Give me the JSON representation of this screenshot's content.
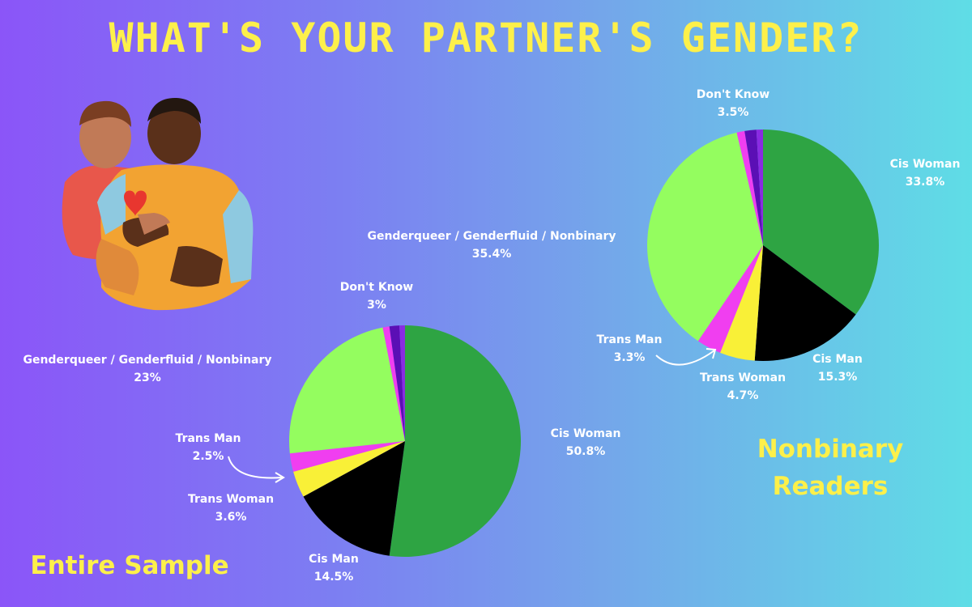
{
  "title": "WHAT'S YOUR PARTNER'S GENDER?",
  "colors": {
    "cis_woman": "#2ea443",
    "cis_man": "#000000",
    "trans_woman": "#f9f037",
    "trans_man": "#f03ef0",
    "genderqueer": "#94fd5f",
    "dont_know_pink": "#f03ef0",
    "dont_know_purple": "#5b0fb5",
    "dont_know_violet": "#8a2be2",
    "title": "#fdf04a",
    "labels": "#ffffff"
  },
  "chart_data": [
    {
      "type": "pie",
      "title": "Entire Sample",
      "series": [
        {
          "label": "Cis Woman",
          "value": 50.8,
          "display": "50.8%",
          "color": "#2ea443"
        },
        {
          "label": "Cis Man",
          "value": 14.5,
          "display": "14.5%",
          "color": "#000000"
        },
        {
          "label": "Trans Woman",
          "value": 3.6,
          "display": "3.6%",
          "color": "#f9f037"
        },
        {
          "label": "Trans Man",
          "value": 2.5,
          "display": "2.5%",
          "color": "#f03ef0"
        },
        {
          "label": "Genderqueer / Genderfluid / Nonbinary",
          "value": 23,
          "display": "23%",
          "color": "#94fd5f"
        },
        {
          "label": "Don't Know",
          "value": 3,
          "display": "3%",
          "color": "#5b0fb5"
        }
      ]
    },
    {
      "type": "pie",
      "title": "Nonbinary Readers",
      "series": [
        {
          "label": "Cis Woman",
          "value": 33.8,
          "display": "33.8%",
          "color": "#2ea443"
        },
        {
          "label": "Cis Man",
          "value": 15.3,
          "display": "15.3%",
          "color": "#000000"
        },
        {
          "label": "Trans Woman",
          "value": 4.7,
          "display": "4.7%",
          "color": "#f9f037"
        },
        {
          "label": "Trans Man",
          "value": 3.3,
          "display": "3.3%",
          "color": "#f03ef0"
        },
        {
          "label": "Genderqueer / Genderfluid / Nonbinary",
          "value": 35.4,
          "display": "35.4%",
          "color": "#94fd5f"
        },
        {
          "label": "Don't Know",
          "value": 3.5,
          "display": "3.5%",
          "color": "#5b0fb5"
        }
      ]
    }
  ]
}
